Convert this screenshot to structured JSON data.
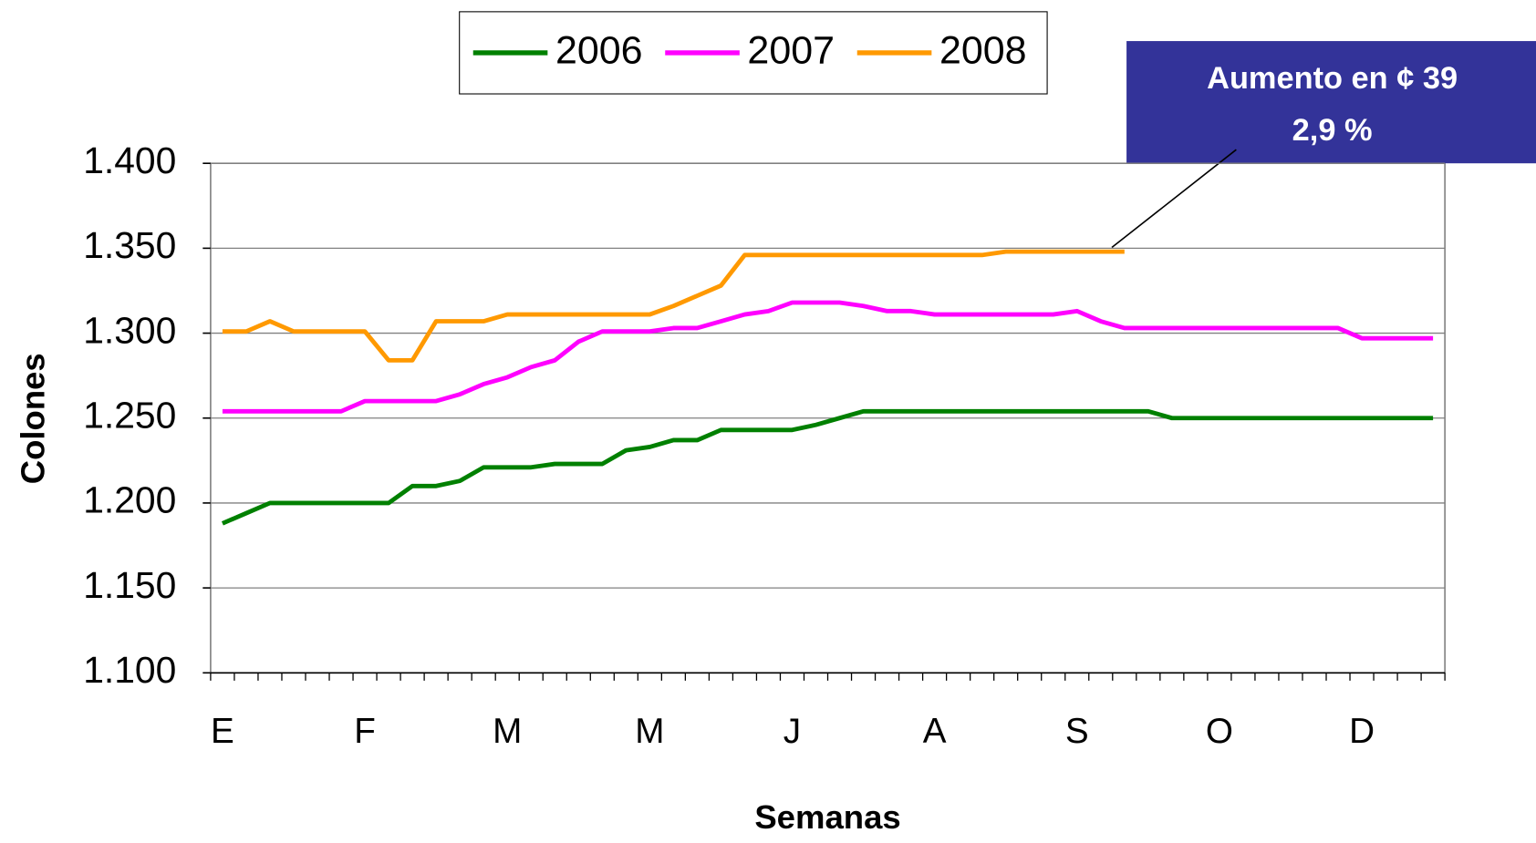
{
  "chart_data": {
    "type": "line",
    "y_label": "Colones",
    "x_label": "Semanas",
    "categories": [
      "E",
      null,
      null,
      null,
      null,
      null,
      "F",
      null,
      null,
      null,
      null,
      null,
      "M",
      null,
      null,
      null,
      null,
      null,
      "M",
      null,
      null,
      null,
      null,
      null,
      "J",
      null,
      null,
      null,
      null,
      null,
      "A",
      null,
      null,
      null,
      null,
      null,
      "S",
      null,
      null,
      null,
      null,
      null,
      "O",
      null,
      null,
      null,
      null,
      null,
      "D",
      null,
      null,
      null
    ],
    "series": [
      {
        "name": "2006",
        "color": "#008000",
        "values": [
          1188,
          1194,
          1200,
          1200,
          1200,
          1200,
          1200,
          1200,
          1210,
          1210,
          1213,
          1221,
          1221,
          1221,
          1223,
          1223,
          1223,
          1231,
          1233,
          1237,
          1237,
          1243,
          1243,
          1243,
          1243,
          1246,
          1250,
          1254,
          1254,
          1254,
          1254,
          1254,
          1254,
          1254,
          1254,
          1254,
          1254,
          1254,
          1254,
          1254,
          1250,
          1250,
          1250,
          1250,
          1250,
          1250,
          1250,
          1250,
          1250,
          1250,
          1250,
          1250
        ]
      },
      {
        "name": "2007",
        "color": "#ff00ff",
        "values": [
          1254,
          1254,
          1254,
          1254,
          1254,
          1254,
          1260,
          1260,
          1260,
          1260,
          1264,
          1270,
          1274,
          1280,
          1284,
          1295,
          1301,
          1301,
          1301,
          1303,
          1303,
          1307,
          1311,
          1313,
          1318,
          1318,
          1318,
          1316,
          1313,
          1313,
          1311,
          1311,
          1311,
          1311,
          1311,
          1311,
          1313,
          1307,
          1303,
          1303,
          1303,
          1303,
          1303,
          1303,
          1303,
          1303,
          1303,
          1303,
          1297,
          1297,
          1297,
          1297
        ]
      },
      {
        "name": "2008",
        "color": "#ff9900",
        "values": [
          1301,
          1301,
          1307,
          1301,
          1301,
          1301,
          1301,
          1284,
          1284,
          1307,
          1307,
          1307,
          1311,
          1311,
          1311,
          1311,
          1311,
          1311,
          1311,
          1316,
          1322,
          1328,
          1346,
          1346,
          1346,
          1346,
          1346,
          1346,
          1346,
          1346,
          1346,
          1346,
          1346,
          1348,
          1348,
          1348,
          1348,
          1348,
          1348,
          null,
          null,
          null,
          null,
          null,
          null,
          null,
          null,
          null,
          null,
          null,
          null,
          null
        ]
      }
    ],
    "ylim": [
      1100,
      1400
    ],
    "yticks": [
      {
        "value": 1100,
        "label": "1.100"
      },
      {
        "value": 1150,
        "label": "1.150"
      },
      {
        "value": 1200,
        "label": "1.200"
      },
      {
        "value": 1250,
        "label": "1.250"
      },
      {
        "value": 1300,
        "label": "1.300"
      },
      {
        "value": 1350,
        "label": "1.350"
      },
      {
        "value": 1400,
        "label": "1.400"
      }
    ],
    "grid": true,
    "legend": "top",
    "annotation": [
      "Aumento en ¢ 39",
      "2,9 %"
    ]
  }
}
